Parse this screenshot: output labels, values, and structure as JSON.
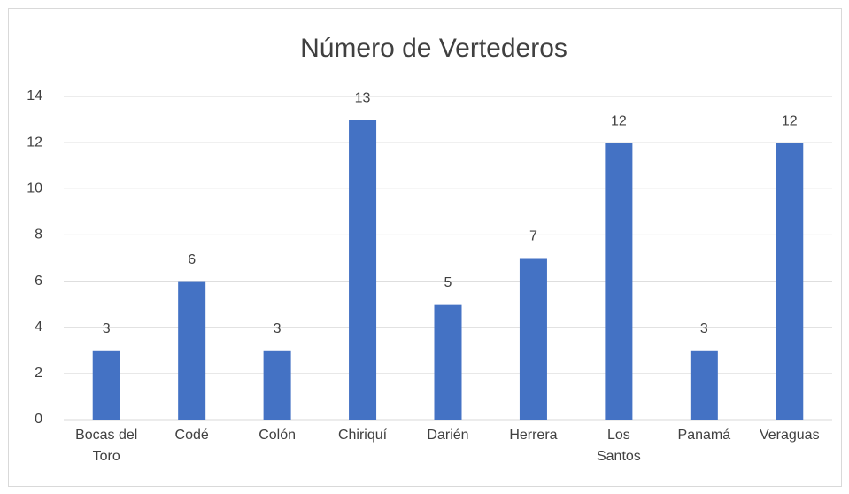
{
  "chart_data": {
    "type": "bar",
    "title": "Número de Vertederos",
    "categories": [
      "Bocas del Toro",
      "Codé",
      "Colón",
      "Chiriquí",
      "Darién",
      "Herrera",
      "Los Santos",
      "Panamá",
      "Veraguas"
    ],
    "values": [
      3,
      6,
      3,
      13,
      5,
      7,
      12,
      3,
      12
    ],
    "color": "#4472c4",
    "ylim": [
      0,
      14
    ],
    "yticks": [
      0,
      2,
      4,
      6,
      8,
      10,
      12,
      14
    ],
    "grid": true
  }
}
